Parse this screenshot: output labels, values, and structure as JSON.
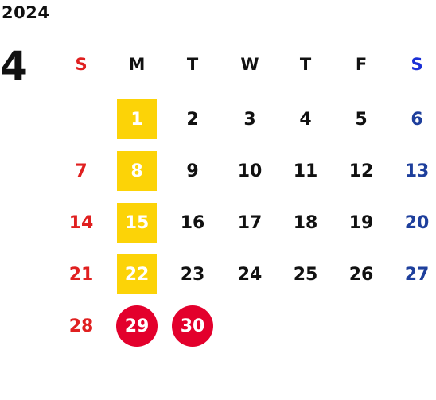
{
  "calendar": {
    "year": "2024",
    "month": "4",
    "weekday_headers": [
      "S",
      "M",
      "T",
      "W",
      "T",
      "F",
      "S"
    ],
    "weeks": [
      [
        "",
        "1",
        "2",
        "3",
        "4",
        "5",
        "6"
      ],
      [
        "7",
        "8",
        "9",
        "10",
        "11",
        "12",
        "13"
      ],
      [
        "14",
        "15",
        "16",
        "17",
        "18",
        "19",
        "20"
      ],
      [
        "21",
        "22",
        "23",
        "24",
        "25",
        "26",
        "27"
      ],
      [
        "28",
        "29",
        "30",
        "",
        "",
        "",
        ""
      ]
    ],
    "highlighted_box_days": [
      "1",
      "8",
      "15",
      "22"
    ],
    "highlighted_circle_days": [
      "29",
      "30"
    ],
    "colors": {
      "sunday": "#e02020",
      "saturday": "#1e3f9c",
      "box_highlight": "#fcd307",
      "circle_highlight": "#e3002c",
      "text": "#111111"
    }
  }
}
